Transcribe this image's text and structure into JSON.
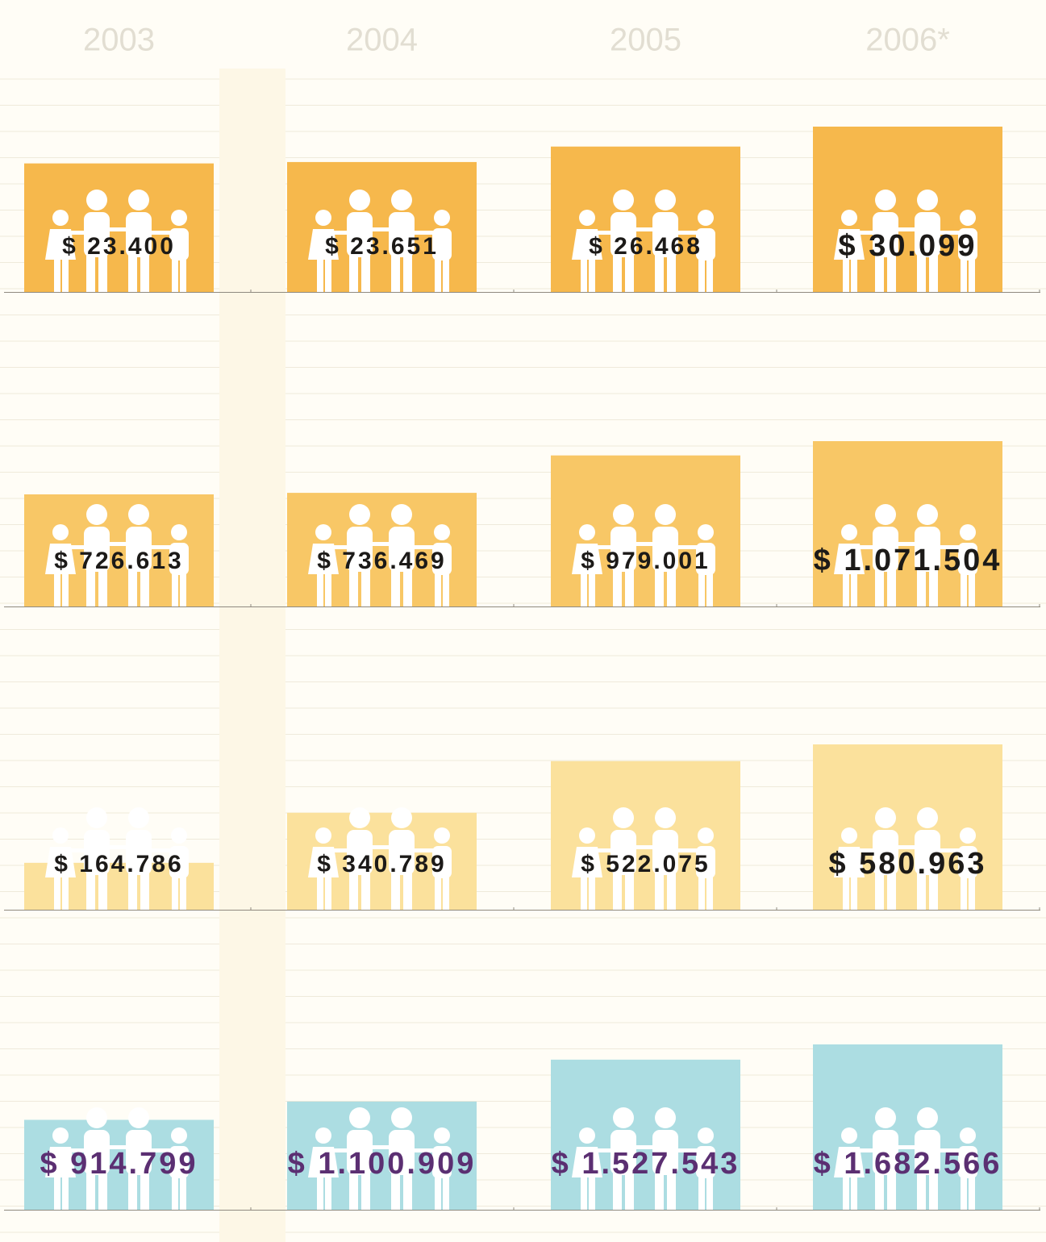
{
  "chart_data": {
    "type": "bar",
    "categories": [
      "2003",
      "2004",
      "2005",
      "2006*"
    ],
    "series": [
      {
        "color": "#f6b84c",
        "label_color": "#1c1a18",
        "values": [
          23400,
          23651,
          26468,
          30099
        ],
        "value_labels": [
          "$ 23.400",
          "$ 23.651",
          "$ 26.468",
          "$ 30.099"
        ]
      },
      {
        "color": "#f8c766",
        "label_color": "#1c1a18",
        "values": [
          726613,
          736469,
          979001,
          1071504
        ],
        "value_labels": [
          "$ 726.613",
          "$ 736.469",
          "$ 979.001",
          "$ 1.071.504"
        ]
      },
      {
        "color": "#fbe19c",
        "label_color": "#1c1a18",
        "values": [
          164786,
          340789,
          522075,
          580963
        ],
        "value_labels": [
          "$ 164.786",
          "$ 340.789",
          "$ 522.075",
          "$ 580.963"
        ]
      },
      {
        "color": "#acdde2",
        "label_color": "#5b2f72",
        "values": [
          914799,
          1100909,
          1527543,
          1682566
        ],
        "value_labels": [
          "$ 914.799",
          "$ 1.100.909",
          "$ 1.527.543",
          "$ 1.682.566"
        ]
      }
    ]
  }
}
